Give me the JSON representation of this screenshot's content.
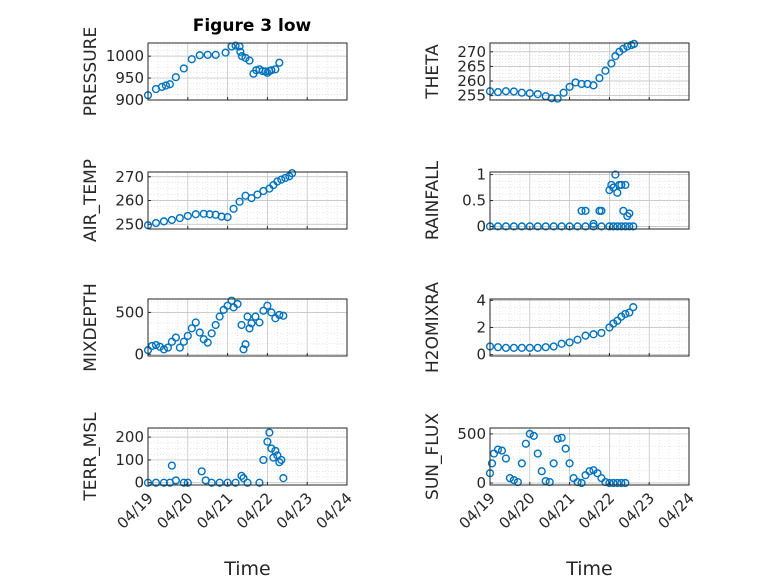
{
  "figure": {
    "title": "Figure 3 low"
  },
  "colors": {
    "marker": "#0072BD",
    "axis": "#262626",
    "grid": "#d4d4d4",
    "background": "#ffffff"
  },
  "chart_data": [
    {
      "id": "pressure",
      "type": "scatter",
      "title": "Figure 3 low",
      "ylabel": "PRESSURE",
      "xlabel": "",
      "ylim": [
        900,
        1030
      ],
      "yticks": [
        900,
        950,
        1000
      ],
      "ytick_labels": [
        "900",
        "950",
        "1000"
      ],
      "xlim": [
        0,
        5
      ],
      "xtick_labels": [
        "04/19",
        "04/20",
        "04/21",
        "04/22",
        "04/23",
        "04/24"
      ],
      "grid": true,
      "minor_grid": true,
      "marker": "open-circle",
      "series": [
        {
          "x": [
            0.0,
            0.2,
            0.35,
            0.45,
            0.55,
            0.7,
            0.9,
            1.1,
            1.3,
            1.5,
            1.7,
            1.95,
            2.1,
            2.2,
            2.3,
            2.32,
            2.36,
            2.45,
            2.55,
            2.65,
            2.72,
            2.8,
            2.88,
            2.95,
            3.0,
            3.05,
            3.1,
            3.2,
            3.3
          ],
          "y": [
            911,
            925,
            930,
            933,
            936,
            952,
            972,
            993,
            1002,
            1003,
            1003,
            1008,
            1022,
            1024,
            1022,
            1010,
            1000,
            996,
            990,
            960,
            968,
            970,
            966,
            965,
            962,
            966,
            968,
            970,
            985
          ]
        }
      ]
    },
    {
      "id": "theta",
      "type": "scatter",
      "ylabel": "THETA",
      "xlabel": "",
      "ylim": [
        253.5,
        273
      ],
      "yticks": [
        255,
        260,
        265,
        270
      ],
      "ytick_labels": [
        "255",
        "260",
        "265",
        "270"
      ],
      "xlim": [
        0,
        5
      ],
      "xtick_labels": [
        "04/19",
        "04/20",
        "04/21",
        "04/22",
        "04/23",
        "04/24"
      ],
      "grid": true,
      "minor_grid": true,
      "marker": "open-circle",
      "series": [
        {
          "x": [
            0.0,
            0.2,
            0.4,
            0.6,
            0.8,
            1.0,
            1.2,
            1.4,
            1.55,
            1.7,
            1.85,
            2.0,
            2.15,
            2.3,
            2.45,
            2.6,
            2.75,
            2.9,
            3.05,
            3.15,
            3.25,
            3.35,
            3.45,
            3.55,
            3.62
          ],
          "y": [
            256.5,
            256.2,
            256.5,
            256.4,
            256.0,
            255.8,
            255.5,
            254.8,
            254.1,
            254.0,
            256.0,
            258.0,
            259.5,
            259.0,
            259.0,
            258.5,
            261.0,
            263.5,
            266.0,
            268.5,
            270.0,
            271.0,
            271.8,
            272.3,
            272.7
          ]
        }
      ]
    },
    {
      "id": "air_temp",
      "type": "scatter",
      "ylabel": "AIR_TEMP",
      "xlabel": "",
      "ylim": [
        248,
        272
      ],
      "yticks": [
        250,
        260,
        270
      ],
      "ytick_labels": [
        "250",
        "260",
        "270"
      ],
      "xlim": [
        0,
        5
      ],
      "xtick_labels": [
        "04/19",
        "04/20",
        "04/21",
        "04/22",
        "04/23",
        "04/24"
      ],
      "grid": true,
      "minor_grid": true,
      "marker": "open-circle",
      "series": [
        {
          "x": [
            0.0,
            0.2,
            0.4,
            0.6,
            0.8,
            1.0,
            1.2,
            1.4,
            1.55,
            1.7,
            1.85,
            2.0,
            2.15,
            2.3,
            2.45,
            2.6,
            2.75,
            2.9,
            3.05,
            3.15,
            3.25,
            3.35,
            3.45,
            3.55,
            3.62
          ],
          "y": [
            249.6,
            250.5,
            251.2,
            251.8,
            252.6,
            253.5,
            254.2,
            254.4,
            254.2,
            254.0,
            253.2,
            253.0,
            256.5,
            259.5,
            262.0,
            261.0,
            262.5,
            264.0,
            265.0,
            266.5,
            268.0,
            268.8,
            269.5,
            270.2,
            271.5
          ]
        }
      ]
    },
    {
      "id": "rainfall",
      "type": "scatter",
      "ylabel": "RAINFALL",
      "xlabel": "",
      "ylim": [
        -0.05,
        1.05
      ],
      "yticks": [
        0,
        0.5,
        1
      ],
      "ytick_labels": [
        "0",
        "0.5",
        "1"
      ],
      "xlim": [
        0,
        5
      ],
      "xtick_labels": [
        "04/19",
        "04/20",
        "04/21",
        "04/22",
        "04/23",
        "04/24"
      ],
      "grid": true,
      "minor_grid": true,
      "marker": "open-circle",
      "series": [
        {
          "x": [
            0.0,
            0.2,
            0.4,
            0.6,
            0.8,
            1.0,
            1.2,
            1.4,
            1.6,
            1.8,
            2.0,
            2.2,
            2.4,
            2.6,
            2.8,
            3.0,
            3.1,
            3.2,
            3.3,
            3.4,
            3.5,
            3.6,
            2.3,
            2.4,
            2.6,
            2.75,
            2.8,
            3.0,
            3.05,
            3.1,
            3.15,
            3.2,
            3.25,
            3.3,
            3.35,
            3.4,
            3.45,
            3.5
          ],
          "y": [
            0,
            0,
            0,
            0,
            0,
            0,
            0,
            0,
            0,
            0,
            0,
            0,
            0,
            0,
            0,
            0,
            0,
            0,
            0,
            0,
            0,
            0,
            0.3,
            0.3,
            0.05,
            0.3,
            0.3,
            0.7,
            0.8,
            0.75,
            1.0,
            0.65,
            0.8,
            0.8,
            0.3,
            0.8,
            0.2,
            0.25
          ]
        }
      ]
    },
    {
      "id": "mixdepth",
      "type": "scatter",
      "ylabel": "MIXDEPTH",
      "xlabel": "",
      "ylim": [
        -20,
        660
      ],
      "yticks": [
        0,
        500
      ],
      "ytick_labels": [
        "0",
        "500"
      ],
      "xlim": [
        0,
        5
      ],
      "xtick_labels": [
        "04/19",
        "04/20",
        "04/21",
        "04/22",
        "04/23",
        "04/24"
      ],
      "grid": true,
      "minor_grid": true,
      "marker": "open-circle",
      "series": [
        {
          "x": [
            0.0,
            0.1,
            0.2,
            0.3,
            0.4,
            0.5,
            0.6,
            0.7,
            0.8,
            0.9,
            1.0,
            1.1,
            1.2,
            1.3,
            1.4,
            1.5,
            1.6,
            1.7,
            1.8,
            1.9,
            2.0,
            2.1,
            2.15,
            2.25,
            2.35,
            2.4,
            2.45,
            2.5,
            2.55,
            2.6,
            2.7,
            2.8,
            2.9,
            3.0,
            3.1,
            3.2,
            3.3,
            3.4
          ],
          "y": [
            50,
            100,
            110,
            90,
            60,
            80,
            150,
            200,
            80,
            150,
            220,
            310,
            380,
            260,
            180,
            140,
            250,
            350,
            450,
            530,
            580,
            640,
            560,
            600,
            350,
            60,
            120,
            450,
            310,
            370,
            450,
            380,
            520,
            580,
            500,
            430,
            470,
            460
          ]
        }
      ]
    },
    {
      "id": "h2omixra",
      "type": "scatter",
      "ylabel": "H2OMIXRA",
      "xlabel": "",
      "ylim": [
        -0.1,
        4.1
      ],
      "yticks": [
        0,
        2,
        4
      ],
      "ytick_labels": [
        "0",
        "2",
        "4"
      ],
      "xlim": [
        0,
        5
      ],
      "xtick_labels": [
        "04/19",
        "04/20",
        "04/21",
        "04/22",
        "04/23",
        "04/24"
      ],
      "grid": true,
      "minor_grid": true,
      "marker": "open-circle",
      "series": [
        {
          "x": [
            0.0,
            0.2,
            0.4,
            0.6,
            0.8,
            1.0,
            1.2,
            1.4,
            1.6,
            1.8,
            2.0,
            2.2,
            2.4,
            2.6,
            2.8,
            3.0,
            3.1,
            3.2,
            3.3,
            3.4,
            3.5,
            3.6
          ],
          "y": [
            0.6,
            0.55,
            0.5,
            0.5,
            0.5,
            0.5,
            0.5,
            0.55,
            0.6,
            0.8,
            0.9,
            1.1,
            1.4,
            1.5,
            1.6,
            2.0,
            2.3,
            2.5,
            2.8,
            3.0,
            3.1,
            3.5
          ]
        }
      ]
    },
    {
      "id": "terr_msl",
      "type": "scatter",
      "ylabel": "TERR_MSL",
      "xlabel": "Time",
      "ylim": [
        -10,
        240
      ],
      "yticks": [
        0,
        100,
        200
      ],
      "ytick_labels": [
        "0",
        "100",
        "200"
      ],
      "xlim": [
        0,
        5
      ],
      "xtick_labels": [
        "04/19",
        "04/20",
        "04/21",
        "04/22",
        "04/23",
        "04/24"
      ],
      "grid": true,
      "minor_grid": true,
      "marker": "open-circle",
      "series": [
        {
          "x": [
            0.0,
            0.2,
            0.4,
            0.55,
            0.6,
            0.7,
            0.9,
            1.0,
            1.35,
            1.45,
            1.6,
            1.8,
            2.0,
            2.2,
            2.35,
            2.4,
            2.5,
            2.8,
            2.9,
            3.0,
            3.05,
            3.1,
            3.15,
            3.2,
            3.25,
            3.3,
            3.35,
            3.4
          ],
          "y": [
            0,
            0,
            0,
            0,
            75,
            10,
            0,
            0,
            50,
            10,
            0,
            0,
            0,
            0,
            30,
            20,
            0,
            0,
            100,
            180,
            220,
            150,
            110,
            140,
            120,
            90,
            100,
            20
          ]
        }
      ]
    },
    {
      "id": "sun_flux",
      "type": "scatter",
      "ylabel": "SUN_FLUX",
      "xlabel": "Time",
      "ylim": [
        -20,
        560
      ],
      "yticks": [
        0,
        500
      ],
      "ytick_labels": [
        "0",
        "500"
      ],
      "xlim": [
        0,
        5
      ],
      "xtick_labels": [
        "04/19",
        "04/20",
        "04/21",
        "04/22",
        "04/23",
        "04/24"
      ],
      "grid": true,
      "minor_grid": true,
      "marker": "open-circle",
      "series": [
        {
          "x": [
            0.0,
            0.05,
            0.1,
            0.2,
            0.3,
            0.4,
            0.5,
            0.6,
            0.7,
            0.8,
            0.9,
            1.0,
            1.1,
            1.2,
            1.3,
            1.4,
            1.5,
            1.6,
            1.7,
            1.8,
            1.9,
            2.0,
            2.1,
            2.2,
            2.3,
            2.4,
            2.5,
            2.6,
            2.7,
            2.8,
            2.9,
            3.0,
            3.1,
            3.2,
            3.3,
            3.4
          ],
          "y": [
            100,
            200,
            300,
            340,
            330,
            250,
            50,
            30,
            10,
            200,
            400,
            500,
            480,
            300,
            120,
            20,
            10,
            200,
            450,
            460,
            350,
            200,
            50,
            10,
            0,
            80,
            120,
            130,
            100,
            50,
            10,
            0,
            0,
            0,
            0,
            0
          ]
        }
      ]
    }
  ]
}
